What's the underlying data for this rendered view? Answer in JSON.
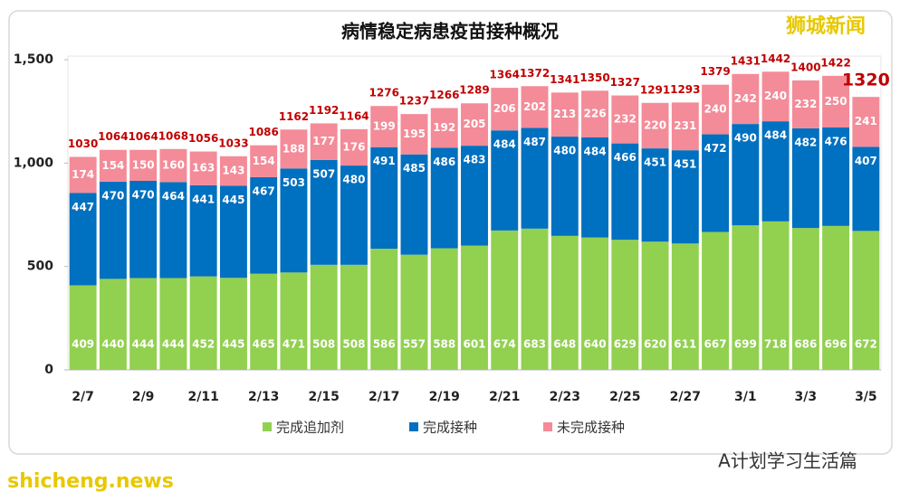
{
  "chart_data": {
    "type": "stacked_bar",
    "title": "病情稳定病患疫苗接种概况",
    "categories": [
      "2/7",
      null,
      "2/9",
      null,
      "2/11",
      null,
      "2/13",
      null,
      "2/15",
      null,
      "2/17",
      null,
      "2/19",
      null,
      "2/21",
      null,
      "2/23",
      null,
      "2/25",
      null,
      "2/27",
      null,
      "3/1",
      null,
      "3/3",
      null,
      "3/5"
    ],
    "series": [
      {
        "name": "完成追加剂",
        "color": "#92d050",
        "values": [
          409,
          440,
          444,
          444,
          452,
          445,
          465,
          471,
          508,
          508,
          586,
          557,
          588,
          601,
          674,
          683,
          648,
          640,
          629,
          620,
          611,
          667,
          699,
          718,
          686,
          696,
          672
        ]
      },
      {
        "name": "完成接种",
        "color": "#0070c0",
        "values": [
          447,
          470,
          470,
          464,
          441,
          445,
          467,
          503,
          507,
          480,
          491,
          485,
          486,
          483,
          484,
          487,
          480,
          484,
          466,
          451,
          451,
          472,
          490,
          484,
          482,
          476,
          407
        ]
      },
      {
        "name": "未完成接种",
        "color": "#f48b98",
        "values": [
          174,
          154,
          150,
          160,
          163,
          143,
          154,
          188,
          177,
          176,
          199,
          195,
          192,
          205,
          206,
          202,
          213,
          226,
          232,
          220,
          231,
          240,
          242,
          240,
          232,
          250,
          241
        ]
      }
    ],
    "totals": [
      1030,
      1064,
      1064,
      1068,
      1056,
      1033,
      1086,
      1162,
      1192,
      1164,
      1276,
      1237,
      1266,
      1289,
      1364,
      1372,
      1341,
      1350,
      1327,
      1291,
      1293,
      1379,
      1431,
      1442,
      1400,
      1422,
      1320
    ],
    "ylim": [
      0,
      1500
    ],
    "yticks": [
      0,
      500,
      {
        "value": 1000,
        "label": "1,000"
      },
      {
        "value": 1500,
        "label": "1,500"
      }
    ],
    "watermarks": [
      "狮城新闻",
      "A计划学习生活篇",
      "shicheng.news"
    ]
  }
}
